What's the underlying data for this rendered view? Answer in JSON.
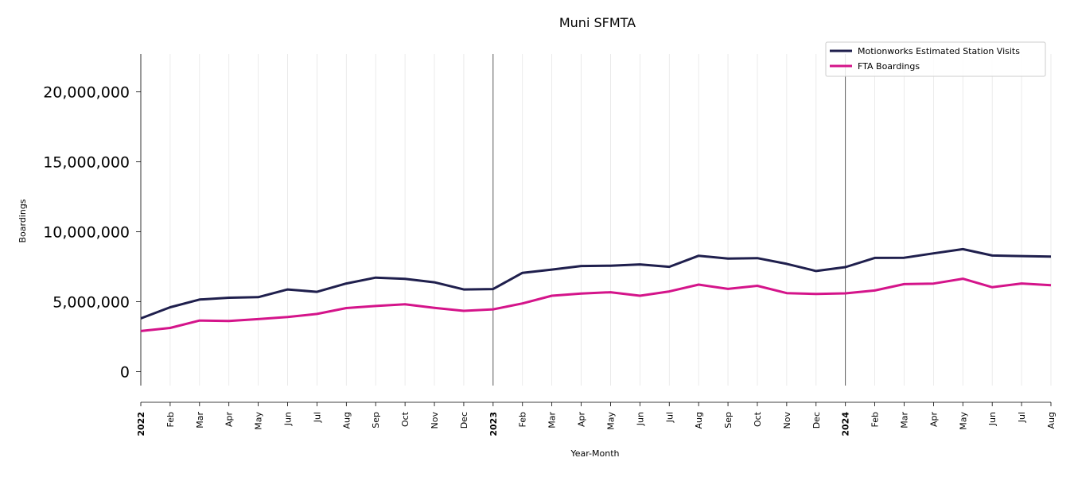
{
  "chart_data": {
    "type": "line",
    "title": "Muni SFMTA",
    "xlabel": "Year-Month",
    "ylabel": "Boardings",
    "ylim": [
      -1000000,
      22700000
    ],
    "yticks": [
      0,
      5000000,
      10000000,
      15000000,
      20000000
    ],
    "ytick_labels": [
      "0",
      "5,000,000",
      "10,000,000",
      "15,000,000",
      "20,000,000"
    ],
    "x": [
      "2022-01",
      "2022-02",
      "2022-03",
      "2022-04",
      "2022-05",
      "2022-06",
      "2022-07",
      "2022-08",
      "2022-09",
      "2022-10",
      "2022-11",
      "2022-12",
      "2023-01",
      "2023-02",
      "2023-03",
      "2023-04",
      "2023-05",
      "2023-06",
      "2023-07",
      "2023-08",
      "2023-09",
      "2023-10",
      "2023-11",
      "2023-12",
      "2024-01",
      "2024-02",
      "2024-03",
      "2024-04",
      "2024-05",
      "2024-06",
      "2024-07",
      "2024-08"
    ],
    "x_tick_labels": [
      "2022",
      "Feb",
      "Mar",
      "Apr",
      "May",
      "Jun",
      "Jul",
      "Aug",
      "Sep",
      "Oct",
      "Nov",
      "Dec",
      "2023",
      "Feb",
      "Mar",
      "Apr",
      "May",
      "Jun",
      "Jul",
      "Aug",
      "Sep",
      "Oct",
      "Nov",
      "Dec",
      "2024",
      "Feb",
      "Mar",
      "Apr",
      "May",
      "Jun",
      "Jul",
      "Aug"
    ],
    "year_markers": [
      "2023-01",
      "2024-01"
    ],
    "grid": "vertical",
    "legend_position": "top-right",
    "series": [
      {
        "name": "Motionworks Estimated Station Visits",
        "color": "#1f1f4d",
        "values": [
          3800000,
          4600000,
          5150000,
          5280000,
          5320000,
          5870000,
          5700000,
          6300000,
          6720000,
          6630000,
          6380000,
          5870000,
          5900000,
          7060000,
          7290000,
          7550000,
          7570000,
          7660000,
          7490000,
          8280000,
          8080000,
          8110000,
          7700000,
          7190000,
          7470000,
          8130000,
          8140000,
          8450000,
          8750000,
          8300000,
          8260000,
          8220000
        ]
      },
      {
        "name": "FTA Boardings",
        "color": "#d4148a",
        "values": [
          2900000,
          3120000,
          3650000,
          3620000,
          3750000,
          3900000,
          4120000,
          4540000,
          4690000,
          4810000,
          4550000,
          4340000,
          4450000,
          4870000,
          5420000,
          5580000,
          5670000,
          5420000,
          5730000,
          6220000,
          5910000,
          6130000,
          5610000,
          5550000,
          5590000,
          5800000,
          6250000,
          6290000,
          6640000,
          6030000,
          6300000,
          6170000
        ]
      }
    ]
  }
}
